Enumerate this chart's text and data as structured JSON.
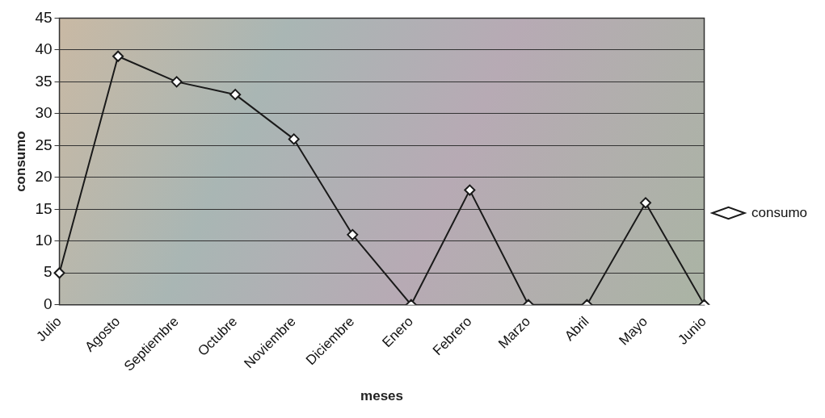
{
  "chart_data": {
    "type": "line",
    "xlabel": "meses",
    "ylabel": "consumo",
    "categories": [
      "Julio",
      "Agosto",
      "Septiembre",
      "Octubre",
      "Noviembre",
      "Diciembre",
      "Enero",
      "Febrero",
      "Marzo",
      "Abril",
      "Mayo",
      "Junio"
    ],
    "series": [
      {
        "name": "consumo",
        "color": "#1a1a1a",
        "values": [
          5,
          39,
          35,
          33,
          26,
          11,
          0,
          18,
          0,
          0,
          16,
          0
        ]
      }
    ],
    "ylim": [
      0,
      45
    ],
    "yticks": [
      0,
      5,
      10,
      15,
      20,
      25,
      30,
      35,
      40,
      45
    ],
    "grid": "y",
    "legend": "right",
    "marker": "diamond",
    "line_style": "solid"
  }
}
